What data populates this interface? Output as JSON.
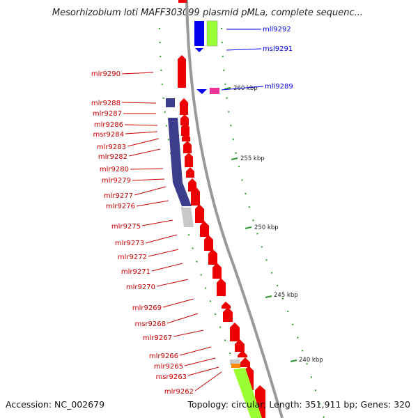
{
  "title": "Mesorhizobium loti MAFF303099 plasmid pMLa, complete sequenc...",
  "footer": {
    "accession": "Accession: NC_002679",
    "topology": "Topology: circular; Length: 351,911 bp; Genes: 320"
  },
  "colors": {
    "forward": "#ee0000",
    "reverse": "#0000ee",
    "purple": "#3d3d8e",
    "lime": "#99ff33",
    "gray": "#c8c8c8",
    "magenta": "#ee3399",
    "orange": "#ff8800",
    "backbone": "#888888",
    "tick": "#2c9a2c"
  },
  "kbp_ticks": [
    "260 kbp",
    "255 kbp",
    "250 kbp",
    "245 kbp",
    "240 kbp"
  ],
  "right_labels": [
    "mll9292",
    "msl9291",
    "mll9289"
  ],
  "left_labels": [
    "mlr9290",
    "mlr9288",
    "mlr9287",
    "mlr9286",
    "msr9284",
    "mlr9283",
    "mlr9282",
    "mlr9280",
    "mlr9279",
    "mlr9277",
    "mlr9276",
    "mlr9275",
    "mlr9273",
    "mlr9272",
    "mlr9271",
    "mlr9270",
    "mlr9269",
    "msr9268",
    "mlr9267",
    "mlr9266",
    "mlr9265",
    "msr9263",
    "mlr9262"
  ]
}
